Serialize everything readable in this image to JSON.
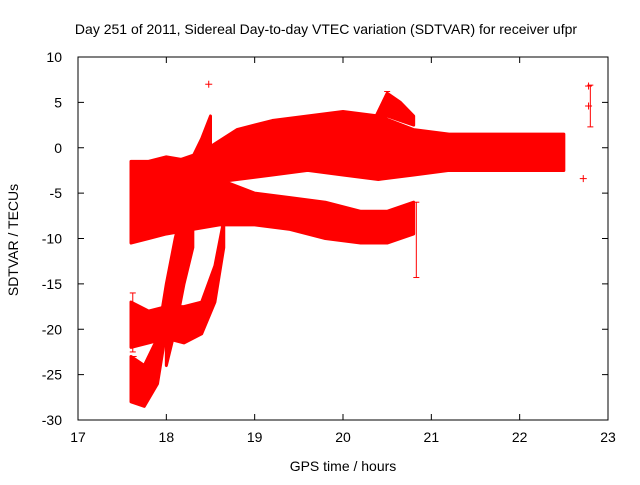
{
  "chart_data": {
    "type": "scatter",
    "title": "Day 251 of 2011, Sidereal Day-to-day VTEC variation (SDTVAR) for receiver ufpr",
    "xlabel": "GPS time / hours",
    "ylabel": "SDTVAR / TECUs",
    "xlim": [
      17,
      23
    ],
    "ylim": [
      -30,
      10
    ],
    "x_ticks": [
      "17",
      "18",
      "19",
      "20",
      "21",
      "22",
      "23"
    ],
    "y_ticks": [
      "-30",
      "-25",
      "-20",
      "-15",
      "-10",
      "-5",
      "0",
      "5",
      "10"
    ],
    "grid": false,
    "legend": "none",
    "marker": "plus-with-errorbars",
    "series_color": "#ff0000",
    "bands": [
      {
        "description_free_shape": "upper band",
        "x": [
          18.1,
          18.4,
          18.8,
          19.2,
          19.6,
          20.0,
          20.4,
          20.8,
          21.2,
          21.6,
          22.0,
          22.5
        ],
        "upper": [
          -1.5,
          -0.5,
          2.0,
          3.0,
          3.5,
          4.0,
          3.5,
          2.0,
          1.5,
          1.5,
          1.5,
          1.5
        ],
        "lower": [
          -4.5,
          -4.0,
          -3.5,
          -3.0,
          -2.5,
          -3.0,
          -3.5,
          -3.0,
          -2.5,
          -2.5,
          -2.5,
          -2.5
        ]
      },
      {
        "x": [
          17.6,
          17.8,
          18.0,
          18.3,
          18.6,
          19.0,
          19.4,
          19.8,
          20.2,
          20.5,
          20.8
        ],
        "upper": [
          -1.5,
          -1.5,
          -1.0,
          -1.5,
          -3.5,
          -5.0,
          -5.5,
          -6.0,
          -7.0,
          -7.0,
          -6.0
        ],
        "lower": [
          -10.5,
          -10.0,
          -9.5,
          -9.0,
          -8.5,
          -8.5,
          -9.0,
          -10.0,
          -10.5,
          -10.5,
          -9.5
        ]
      },
      {
        "x": [
          17.6,
          17.8,
          18.0,
          18.2,
          18.4,
          18.55,
          18.65
        ],
        "upper": [
          -17.0,
          -18.0,
          -17.5,
          -17.5,
          -17.0,
          -13.0,
          -8.0
        ],
        "lower": [
          -22.0,
          -21.5,
          -21.0,
          -21.5,
          -20.5,
          -17.0,
          -11.0
        ]
      },
      {
        "x": [
          17.6,
          17.75,
          17.9,
          18.0,
          18.1,
          18.2
        ],
        "upper": [
          -23.0,
          -24.0,
          -21.0,
          -15.0,
          -10.0,
          -6.0
        ],
        "lower": [
          -28.0,
          -28.5,
          -26.0,
          -20.0,
          -15.0,
          -10.0
        ]
      },
      {
        "x": [
          18.0,
          18.1,
          18.2,
          18.3
        ],
        "upper": [
          -17.0,
          -12.0,
          -9.0,
          -8.0
        ],
        "lower": [
          -24.0,
          -20.0,
          -15.0,
          -11.0
        ]
      },
      {
        "x": [
          18.3,
          18.4,
          18.5
        ],
        "upper": [
          -1.0,
          1.0,
          3.5
        ],
        "lower": [
          -4.0,
          -3.0,
          -1.5
        ]
      },
      {
        "x": [
          20.35,
          20.5,
          20.65,
          20.8
        ],
        "upper": [
          3.0,
          6.0,
          5.0,
          3.5
        ],
        "lower": [
          2.0,
          3.5,
          3.0,
          2.5
        ]
      }
    ],
    "outliers": [
      {
        "x": 18.48,
        "y": 7.0
      },
      {
        "x": 22.72,
        "y": -3.4
      },
      {
        "x": 22.78,
        "y": 6.8
      },
      {
        "x": 22.78,
        "y": 4.6
      }
    ],
    "error_bars": [
      {
        "x": 20.83,
        "y_low": -14.3,
        "y_high": -6.0
      },
      {
        "x": 22.8,
        "y_low": 2.3,
        "y_high": 6.9
      },
      {
        "x": 20.5,
        "y_low": 3.5,
        "y_high": 6.2
      },
      {
        "x": 17.62,
        "y_low": -22.5,
        "y_high": -16.0
      },
      {
        "x": 17.63,
        "y_low": -28.0,
        "y_high": -23.0
      }
    ]
  }
}
